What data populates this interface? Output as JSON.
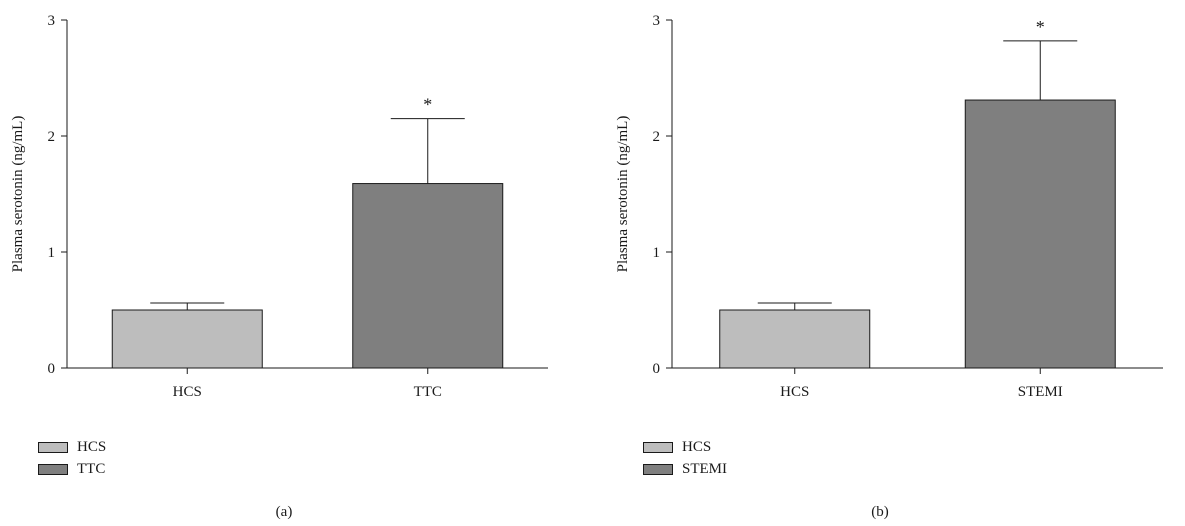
{
  "chart_data": [
    {
      "type": "bar",
      "panel_label": "(a)",
      "ylabel": "Plasma serotonin (ng/mL)",
      "xlabel": "",
      "ylim": [
        0,
        3
      ],
      "yticks": [
        "0",
        "1",
        "2",
        "3"
      ],
      "categories": [
        "HCS",
        "TTC"
      ],
      "values": [
        0.5,
        1.59
      ],
      "errors": [
        0.06,
        0.56
      ],
      "colors": [
        "#bdbdbd",
        "#7f7f7f"
      ],
      "significance": [
        "",
        "*"
      ],
      "legend": [
        {
          "label": "HCS",
          "color": "#bdbdbd"
        },
        {
          "label": "TTC",
          "color": "#7f7f7f"
        }
      ],
      "legend_position": "bottom-left",
      "grid": false
    },
    {
      "type": "bar",
      "panel_label": "(b)",
      "ylabel": "Plasma serotonin (ng/mL)",
      "xlabel": "",
      "ylim": [
        0,
        3
      ],
      "yticks": [
        "0",
        "1",
        "2",
        "3"
      ],
      "categories": [
        "HCS",
        "STEMI"
      ],
      "values": [
        0.5,
        2.31
      ],
      "errors": [
        0.06,
        0.51
      ],
      "colors": [
        "#bdbdbd",
        "#7f7f7f"
      ],
      "significance": [
        "",
        "*"
      ],
      "legend": [
        {
          "label": "HCS",
          "color": "#bdbdbd"
        },
        {
          "label": "STEMI",
          "color": "#7f7f7f"
        }
      ],
      "legend_position": "bottom-left",
      "grid": false
    }
  ]
}
